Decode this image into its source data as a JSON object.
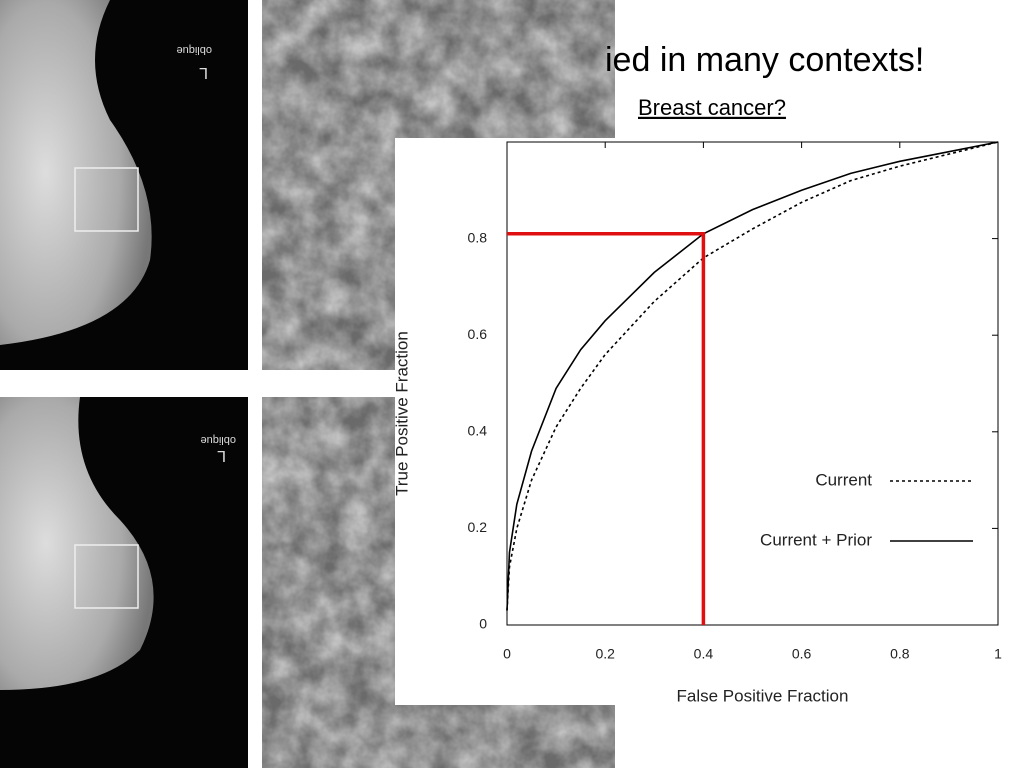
{
  "slide": {
    "title": "ied in many contexts!",
    "subtitle": "Breast cancer?",
    "image_texts": [
      "oblique",
      "L",
      "oblique",
      "L"
    ]
  },
  "chart_data": {
    "type": "line",
    "x_label": "False Positive Fraction",
    "y_label": "True Positive Fraction",
    "x": [
      0,
      0.005,
      0.02,
      0.05,
      0.1,
      0.15,
      0.2,
      0.3,
      0.4,
      0.5,
      0.6,
      0.7,
      0.8,
      0.9,
      1
    ],
    "series": [
      {
        "name": "Current",
        "color": "#000000",
        "style": "dashed",
        "values": [
          0.03,
          0.12,
          0.2,
          0.3,
          0.41,
          0.49,
          0.56,
          0.67,
          0.76,
          0.82,
          0.875,
          0.92,
          0.95,
          0.975,
          1
        ]
      },
      {
        "name": "Current + Prior",
        "color": "#000000",
        "style": "solid",
        "values": [
          0.03,
          0.15,
          0.25,
          0.36,
          0.49,
          0.57,
          0.63,
          0.73,
          0.81,
          0.86,
          0.9,
          0.935,
          0.96,
          0.98,
          1
        ]
      }
    ],
    "highlight": {
      "x": [
        0,
        0.4,
        0.4
      ],
      "y": [
        0.81,
        0.81,
        0
      ],
      "color": "#e01010"
    },
    "xlim": [
      0,
      1
    ],
    "ylim": [
      0,
      1
    ],
    "xticks": [
      0,
      0.2,
      0.4,
      0.6,
      0.8,
      1
    ],
    "yticks": [
      0,
      0.2,
      0.4,
      0.6,
      0.8
    ],
    "legend": "lower-right"
  }
}
